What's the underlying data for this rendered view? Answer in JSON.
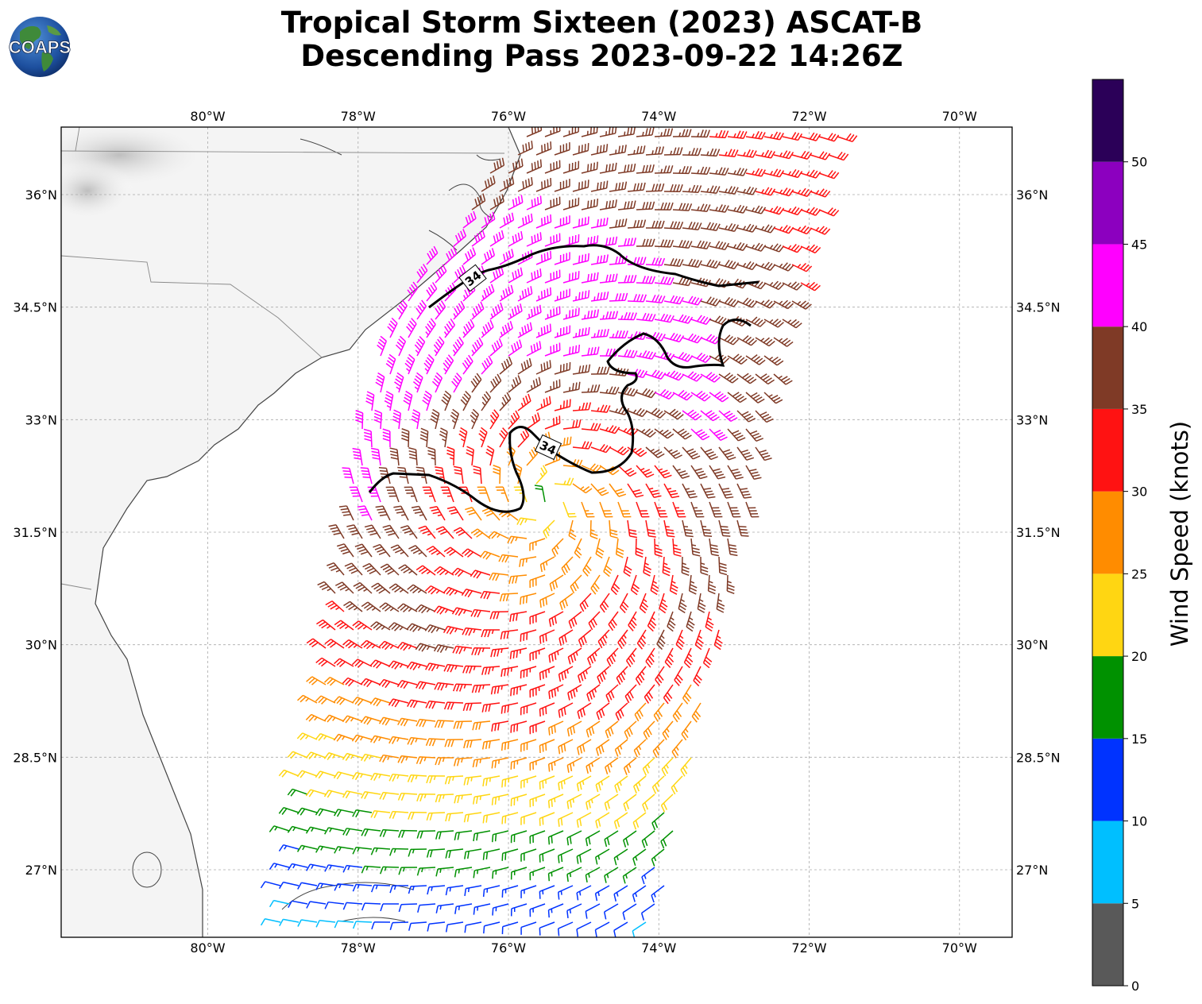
{
  "title_line1": "Tropical Storm Sixteen (2023) ASCAT-B",
  "title_line2": "Descending Pass 2023-09-22 14:26Z",
  "logo_text": "COAPS",
  "map": {
    "lon_range": [
      -81.95,
      -69.3
    ],
    "lat_range": [
      26.1,
      36.9
    ],
    "lon_ticks": [
      {
        "value": -80,
        "label": "80°W"
      },
      {
        "value": -78,
        "label": "78°W"
      },
      {
        "value": -76,
        "label": "76°W"
      },
      {
        "value": -74,
        "label": "74°W"
      },
      {
        "value": -72,
        "label": "72°W"
      },
      {
        "value": -70,
        "label": "70°W"
      }
    ],
    "lat_ticks": [
      {
        "value": 36,
        "label": "36°N"
      },
      {
        "value": 34.5,
        "label": "34.5°N"
      },
      {
        "value": 33,
        "label": "33°N"
      },
      {
        "value": 31.5,
        "label": "31.5°N"
      },
      {
        "value": 30,
        "label": "30°N"
      },
      {
        "value": 28.5,
        "label": "28.5°N"
      },
      {
        "value": 27,
        "label": "27°N"
      }
    ],
    "gridlines": true,
    "storm_center": {
      "lon": -75.5,
      "lat": 31.9
    },
    "contour_label": "34",
    "contour_label_1": "34",
    "contour_label_2": "34"
  },
  "colorbar": {
    "label": "Wind Speed (knots)",
    "ticks": [
      "0",
      "5",
      "10",
      "15",
      "20",
      "25",
      "30",
      "35",
      "40",
      "45",
      "50"
    ],
    "colors": [
      "#595959",
      "#00bfff",
      "#0033ff",
      "#009100",
      "#ffd612",
      "#ff8c00",
      "#ff1212",
      "#7f3a26",
      "#ff00ff",
      "#8c00bf",
      "#2b0058"
    ]
  }
}
